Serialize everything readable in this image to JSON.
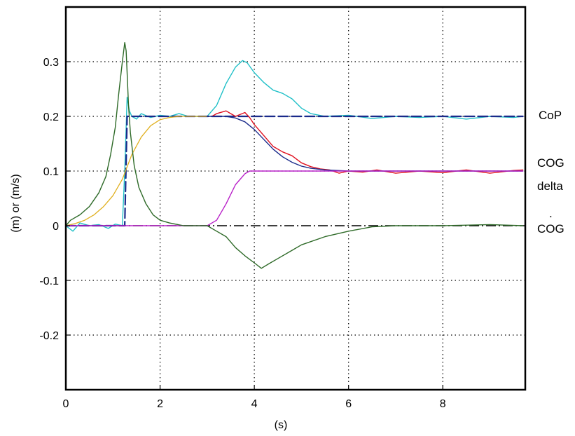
{
  "chart_data": {
    "type": "line",
    "xlabel": "(s)",
    "ylabel": "(m) or (m/s)",
    "xlim": [
      0,
      9.75
    ],
    "ylim": [
      -0.3,
      0.4
    ],
    "x_ticks": [
      0,
      2,
      4,
      6,
      8
    ],
    "x_tick_labels": [
      "0",
      "2",
      "4",
      "6",
      "8"
    ],
    "y_ticks": [
      -0.2,
      -0.1,
      0,
      0.1,
      0.2,
      0.3
    ],
    "y_tick_labels": [
      "-0.2",
      "-0.1",
      "0",
      "0.1",
      "0.2",
      "0.3"
    ],
    "grid": true,
    "labels": {
      "cop": "CoP",
      "cog": "COG",
      "delta": "delta",
      "dot": ".",
      "cog_dot": "COG"
    },
    "series": [
      {
        "id": "cop_measured",
        "color": "#20c0c8",
        "width": 1.4,
        "x": [
          0,
          0.15,
          0.3,
          0.5,
          0.7,
          0.9,
          1.05,
          1.2,
          1.25,
          1.3,
          1.35,
          1.4,
          1.5,
          1.6,
          1.8,
          2.0,
          2.2,
          2.4,
          2.6,
          2.8,
          3.0,
          3.2,
          3.4,
          3.6,
          3.75,
          3.85,
          4.0,
          4.2,
          4.4,
          4.6,
          4.8,
          5.0,
          5.2,
          5.5,
          6.0,
          6.5,
          7.0,
          7.5,
          8.0,
          8.5,
          9.0,
          9.5,
          9.7
        ],
        "y": [
          0,
          -0.01,
          0.005,
          0.0,
          0.002,
          -0.005,
          0.003,
          0.0,
          0.1,
          0.235,
          0.21,
          0.2,
          0.195,
          0.205,
          0.198,
          0.202,
          0.2,
          0.205,
          0.2,
          0.2,
          0.2,
          0.22,
          0.26,
          0.29,
          0.302,
          0.298,
          0.28,
          0.262,
          0.248,
          0.242,
          0.232,
          0.215,
          0.205,
          0.2,
          0.202,
          0.196,
          0.2,
          0.198,
          0.2,
          0.195,
          0.2,
          0.198,
          0.2
        ]
      },
      {
        "id": "cop_reference",
        "color": "#1a2a8a",
        "width": 2.2,
        "dash": "14 5",
        "x": [
          0,
          1.25,
          1.3,
          9.7
        ],
        "y": [
          0,
          0,
          0.2,
          0.2
        ]
      },
      {
        "id": "cog_estimate",
        "color": "#e0b020",
        "width": 1.3,
        "x": [
          0,
          0.2,
          0.4,
          0.6,
          0.8,
          1.0,
          1.2,
          1.4,
          1.6,
          1.8,
          2.0,
          2.2,
          2.4,
          3.0
        ],
        "y": [
          0,
          0.004,
          0.01,
          0.02,
          0.035,
          0.055,
          0.085,
          0.13,
          0.162,
          0.183,
          0.194,
          0.198,
          0.2,
          0.2
        ]
      },
      {
        "id": "cog_measured",
        "color": "#e01020",
        "width": 1.4,
        "x": [
          3.1,
          3.2,
          3.4,
          3.5,
          3.6,
          3.8,
          3.9,
          4.0,
          4.2,
          4.4,
          4.6,
          4.8,
          5.0,
          5.2,
          5.4,
          5.6,
          5.8,
          6.0,
          6.3,
          6.6,
          7.0,
          7.5,
          8.0,
          8.5,
          9.0,
          9.5,
          9.7
        ],
        "y": [
          0.2,
          0.205,
          0.21,
          0.205,
          0.2,
          0.207,
          0.198,
          0.185,
          0.165,
          0.145,
          0.135,
          0.128,
          0.115,
          0.108,
          0.104,
          0.102,
          0.096,
          0.1,
          0.098,
          0.102,
          0.096,
          0.1,
          0.097,
          0.102,
          0.096,
          0.101,
          0.102
        ]
      },
      {
        "id": "cog_smooth",
        "color": "#1a2a8a",
        "width": 1.4,
        "x": [
          3.0,
          3.4,
          3.6,
          3.8,
          4.0,
          4.2,
          4.4,
          4.6,
          4.8,
          5.0,
          5.2,
          5.5,
          6.0,
          9.7
        ],
        "y": [
          0.2,
          0.2,
          0.197,
          0.19,
          0.176,
          0.158,
          0.14,
          0.126,
          0.116,
          0.109,
          0.105,
          0.102,
          0.1,
          0.1
        ]
      },
      {
        "id": "delta",
        "color": "#b820c8",
        "width": 1.4,
        "x": [
          0,
          3.0,
          3.2,
          3.4,
          3.6,
          3.8,
          3.9,
          9.7
        ],
        "y": [
          0,
          0,
          0.01,
          0.04,
          0.075,
          0.095,
          0.1,
          0.1
        ]
      },
      {
        "id": "cog_velocity",
        "color": "#2e6a28",
        "width": 1.4,
        "x": [
          0,
          0.1,
          0.3,
          0.5,
          0.7,
          0.85,
          0.95,
          1.05,
          1.12,
          1.2,
          1.25,
          1.28,
          1.3,
          1.33,
          1.37,
          1.45,
          1.55,
          1.7,
          1.85,
          2.0,
          2.2,
          2.5,
          3.0,
          3.2,
          3.4,
          3.6,
          3.8,
          4.0,
          4.15,
          4.3,
          4.5,
          4.8,
          5.0,
          5.5,
          6.0,
          6.5,
          7.0,
          8.0,
          9.0,
          9.7
        ],
        "y": [
          0,
          0.01,
          0.02,
          0.035,
          0.06,
          0.09,
          0.13,
          0.18,
          0.24,
          0.3,
          0.335,
          0.32,
          0.28,
          0.22,
          0.17,
          0.11,
          0.07,
          0.04,
          0.02,
          0.01,
          0.005,
          0.0,
          0.0,
          -0.01,
          -0.02,
          -0.04,
          -0.055,
          -0.068,
          -0.078,
          -0.07,
          -0.06,
          -0.045,
          -0.035,
          -0.02,
          -0.01,
          -0.002,
          0.0,
          0.0,
          0.002,
          0.0
        ]
      }
    ]
  }
}
